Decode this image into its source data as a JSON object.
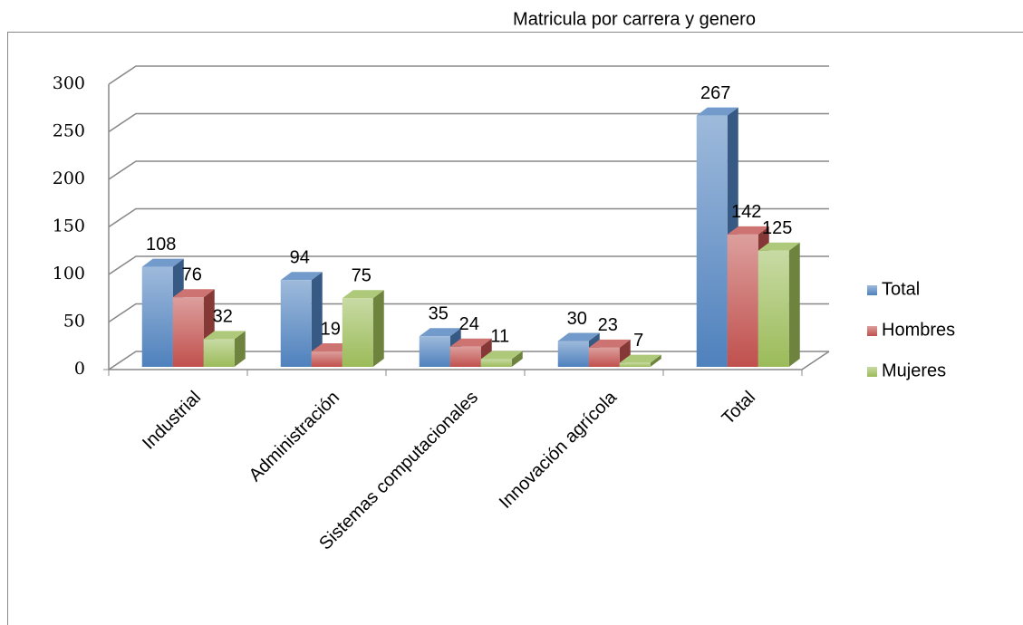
{
  "chart_data": {
    "type": "bar",
    "title": "Matricula por carrera y genero",
    "categories": [
      "Industrial",
      "Administración",
      "Sistemas computacionales",
      "Innovación agrícola",
      "Total"
    ],
    "series": [
      {
        "name": "Total",
        "color": "#4f81bd",
        "values": [
          108,
          94,
          35,
          30,
          267
        ]
      },
      {
        "name": "Hombres",
        "color": "#c0504d",
        "values": [
          76,
          19,
          24,
          23,
          142
        ]
      },
      {
        "name": "Mujeres",
        "color": "#9bbb59",
        "values": [
          32,
          75,
          11,
          7,
          125
        ]
      }
    ],
    "ylim": [
      0,
      300
    ],
    "yticks": [
      0,
      50,
      100,
      150,
      200,
      250,
      300
    ],
    "grid": true,
    "legend": "right"
  }
}
